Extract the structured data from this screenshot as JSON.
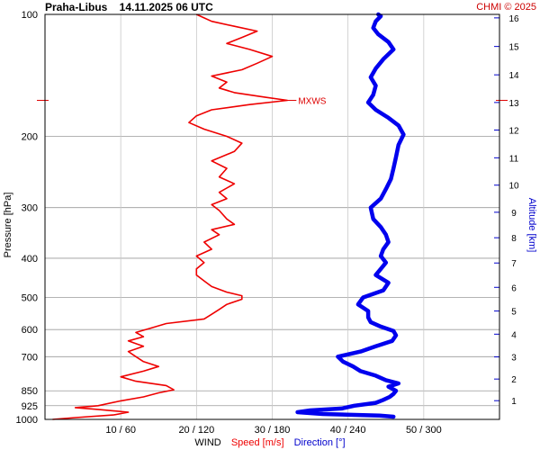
{
  "chart_data": {
    "type": "line",
    "title": "Praha-Libus    14.11.2025 06 UTC",
    "copyright": "CHMI © 2025",
    "ylabel": "Pressure [hPa]",
    "y2label": "Altitude [km]",
    "xlabel_parts": {
      "wind": "WIND",
      "speed": "Speed [m/s]",
      "direction": "Direction [°]"
    },
    "y_scale": "log",
    "ylim": [
      1000,
      100
    ],
    "pressure_ticks": [
      100,
      200,
      300,
      400,
      500,
      600,
      700,
      850,
      925,
      1000
    ],
    "x_ticks": [
      {
        "speed": 10,
        "label": "10 / 60"
      },
      {
        "speed": 20,
        "label": "20 / 120"
      },
      {
        "speed": 30,
        "label": "30 / 180"
      },
      {
        "speed": 40,
        "label": "40 / 240"
      },
      {
        "speed": 50,
        "label": "50 / 300"
      }
    ],
    "xlim_speed": [
      0,
      60
    ],
    "xlim_direction": [
      0,
      360
    ],
    "altitude_ticks": [
      {
        "km": 1,
        "p": 899
      },
      {
        "km": 2,
        "p": 795
      },
      {
        "km": 3,
        "p": 701
      },
      {
        "km": 4,
        "p": 616
      },
      {
        "km": 5,
        "p": 540
      },
      {
        "km": 6,
        "p": 472
      },
      {
        "km": 7,
        "p": 411
      },
      {
        "km": 8,
        "p": 356
      },
      {
        "km": 9,
        "p": 308
      },
      {
        "km": 10,
        "p": 264
      },
      {
        "km": 11,
        "p": 226
      },
      {
        "km": 12,
        "p": 193
      },
      {
        "km": 13,
        "p": 165
      },
      {
        "km": 14,
        "p": 141
      },
      {
        "km": 15,
        "p": 120
      },
      {
        "km": 16,
        "p": 102
      }
    ],
    "max_wind": {
      "label": "MXWS",
      "pressure": 163
    },
    "series": [
      {
        "name": "Speed [m/s]",
        "color": "#ee0000",
        "unit": "m/s",
        "points": [
          [
            1000,
            1
          ],
          [
            990,
            4
          ],
          [
            975,
            9
          ],
          [
            960,
            11
          ],
          [
            945,
            7
          ],
          [
            935,
            4
          ],
          [
            925,
            7
          ],
          [
            900,
            10
          ],
          [
            880,
            13
          ],
          [
            860,
            15
          ],
          [
            845,
            17
          ],
          [
            825,
            16
          ],
          [
            805,
            12
          ],
          [
            785,
            10
          ],
          [
            760,
            13
          ],
          [
            740,
            15
          ],
          [
            720,
            13
          ],
          [
            700,
            12
          ],
          [
            680,
            11
          ],
          [
            660,
            13
          ],
          [
            640,
            11
          ],
          [
            625,
            13
          ],
          [
            610,
            12
          ],
          [
            595,
            14
          ],
          [
            580,
            16
          ],
          [
            565,
            21
          ],
          [
            550,
            22
          ],
          [
            535,
            23
          ],
          [
            520,
            24
          ],
          [
            505,
            26
          ],
          [
            495,
            26
          ],
          [
            485,
            24
          ],
          [
            470,
            22
          ],
          [
            455,
            21
          ],
          [
            440,
            20
          ],
          [
            425,
            20
          ],
          [
            410,
            21
          ],
          [
            395,
            20
          ],
          [
            380,
            22
          ],
          [
            365,
            21
          ],
          [
            350,
            23
          ],
          [
            340,
            22
          ],
          [
            330,
            25
          ],
          [
            320,
            24
          ],
          [
            305,
            23
          ],
          [
            295,
            22
          ],
          [
            285,
            24
          ],
          [
            275,
            23
          ],
          [
            262,
            25
          ],
          [
            252,
            23
          ],
          [
            240,
            24
          ],
          [
            230,
            22
          ],
          [
            218,
            25
          ],
          [
            208,
            26
          ],
          [
            200,
            24
          ],
          [
            192,
            21
          ],
          [
            185,
            19
          ],
          [
            178,
            20
          ],
          [
            172,
            22
          ],
          [
            167,
            27
          ],
          [
            163,
            32
          ],
          [
            160,
            29
          ],
          [
            156,
            25
          ],
          [
            152,
            23
          ],
          [
            147,
            24
          ],
          [
            142,
            22
          ],
          [
            137,
            26
          ],
          [
            132,
            28
          ],
          [
            127,
            30
          ],
          [
            122,
            27
          ],
          [
            118,
            24
          ],
          [
            114,
            26
          ],
          [
            110,
            28
          ],
          [
            107,
            25
          ],
          [
            104,
            22
          ],
          [
            102,
            21
          ],
          [
            100,
            20
          ]
        ]
      },
      {
        "name": "Direction [°]",
        "color": "#0000ee",
        "unit": "deg",
        "points": [
          [
            985,
            276
          ],
          [
            978,
            265
          ],
          [
            970,
            220
          ],
          [
            960,
            200
          ],
          [
            950,
            210
          ],
          [
            940,
            235
          ],
          [
            925,
            245
          ],
          [
            910,
            262
          ],
          [
            895,
            268
          ],
          [
            880,
            273
          ],
          [
            865,
            276
          ],
          [
            850,
            278
          ],
          [
            830,
            272
          ],
          [
            815,
            280
          ],
          [
            800,
            270
          ],
          [
            780,
            262
          ],
          [
            760,
            250
          ],
          [
            740,
            244
          ],
          [
            720,
            236
          ],
          [
            700,
            232
          ],
          [
            680,
            250
          ],
          [
            660,
            262
          ],
          [
            640,
            275
          ],
          [
            620,
            278
          ],
          [
            605,
            276
          ],
          [
            590,
            266
          ],
          [
            575,
            258
          ],
          [
            560,
            256
          ],
          [
            540,
            256
          ],
          [
            520,
            248
          ],
          [
            500,
            252
          ],
          [
            480,
            268
          ],
          [
            460,
            272
          ],
          [
            440,
            262
          ],
          [
            425,
            266
          ],
          [
            410,
            270
          ],
          [
            395,
            266
          ],
          [
            380,
            268
          ],
          [
            365,
            272
          ],
          [
            350,
            270
          ],
          [
            335,
            266
          ],
          [
            320,
            260
          ],
          [
            300,
            258
          ],
          [
            285,
            266
          ],
          [
            270,
            270
          ],
          [
            255,
            274
          ],
          [
            240,
            276
          ],
          [
            225,
            278
          ],
          [
            210,
            280
          ],
          [
            198,
            284
          ],
          [
            188,
            280
          ],
          [
            180,
            272
          ],
          [
            172,
            262
          ],
          [
            165,
            256
          ],
          [
            158,
            260
          ],
          [
            150,
            262
          ],
          [
            143,
            258
          ],
          [
            136,
            262
          ],
          [
            129,
            268
          ],
          [
            122,
            276
          ],
          [
            117,
            272
          ],
          [
            112,
            264
          ],
          [
            108,
            260
          ],
          [
            104,
            262
          ],
          [
            101,
            266
          ],
          [
            100,
            264
          ]
        ]
      }
    ],
    "grid": true
  }
}
